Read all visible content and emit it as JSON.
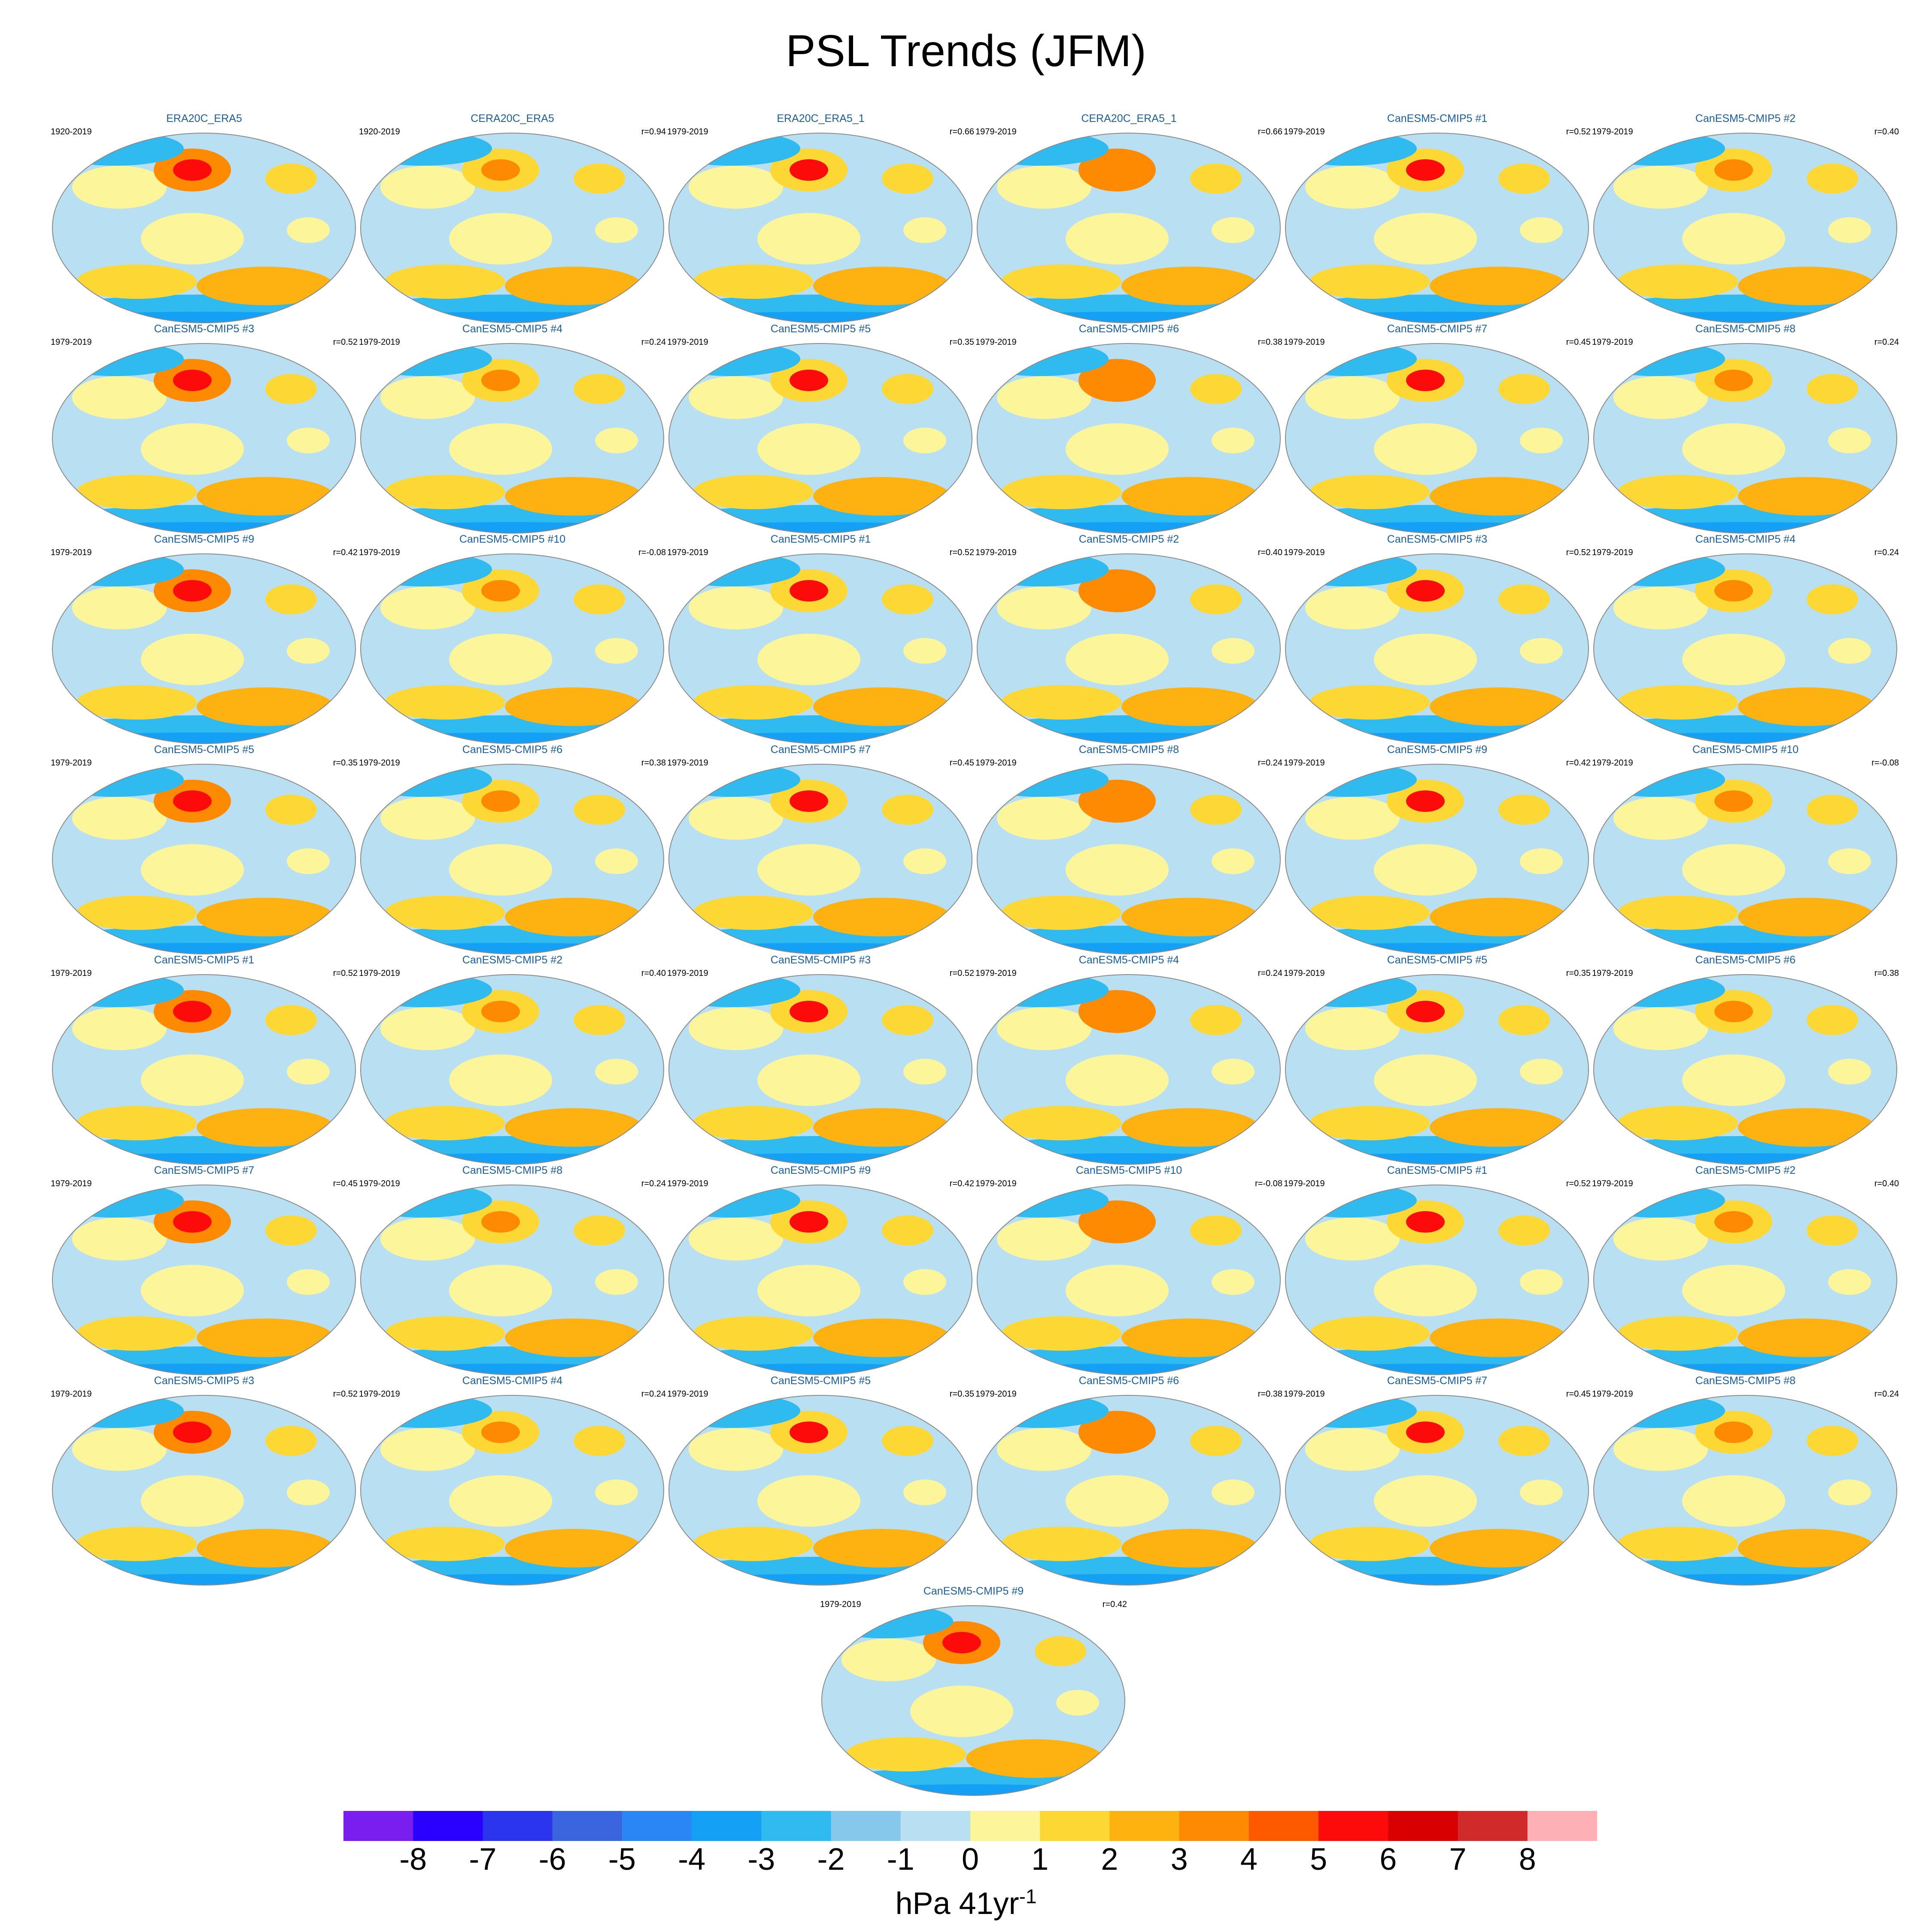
{
  "chart_data": {
    "type": "heatmap",
    "title": "PSL Trends (JFM)",
    "variable": "PSL",
    "season": "JFM",
    "colorbar": {
      "levels": [
        -8,
        -7,
        -6,
        -5,
        -4,
        -3,
        -2,
        -1,
        0,
        1,
        2,
        3,
        4,
        5,
        6,
        7,
        8
      ],
      "tick_labels": [
        "-8",
        "-7",
        "-6",
        "-5",
        "-4",
        "-3",
        "-2",
        "-1",
        "0",
        "1",
        "2",
        "3",
        "4",
        "5",
        "6",
        "7",
        "8"
      ],
      "colors": [
        "#7a1ef0",
        "#2a00ff",
        "#2b35ee",
        "#3a65df",
        "#2a86f5",
        "#14a0f5",
        "#2fbbf0",
        "#86c8ec",
        "#b8e0f2",
        "#fdf59a",
        "#fdd835",
        "#fdb212",
        "#fd8a00",
        "#fd5a00",
        "#fd0a0a",
        "#d80000",
        "#d02a2a",
        "#fdb0b6"
      ],
      "unit_base": "hPa 41yr",
      "unit_exponent": "-1"
    },
    "panels": [
      {
        "title": "ERA20C_ERA5",
        "period": "1920-2019",
        "r": ""
      },
      {
        "title": "CERA20C_ERA5",
        "period": "1920-2019",
        "r": "r=0.94"
      },
      {
        "title": "ERA20C_ERA5_1",
        "period": "1979-2019",
        "r": "r=0.66"
      },
      {
        "title": "CERA20C_ERA5_1",
        "period": "1979-2019",
        "r": "r=0.66"
      },
      {
        "title": "CanESM5-CMIP5 #1",
        "period": "1979-2019",
        "r": "r=0.52"
      },
      {
        "title": "CanESM5-CMIP5 #2",
        "period": "1979-2019",
        "r": "r=0.40"
      },
      {
        "title": "CanESM5-CMIP5 #3",
        "period": "1979-2019",
        "r": "r=0.52"
      },
      {
        "title": "CanESM5-CMIP5 #4",
        "period": "1979-2019",
        "r": "r=0.24"
      },
      {
        "title": "CanESM5-CMIP5 #5",
        "period": "1979-2019",
        "r": "r=0.35"
      },
      {
        "title": "CanESM5-CMIP5 #6",
        "period": "1979-2019",
        "r": "r=0.38"
      },
      {
        "title": "CanESM5-CMIP5 #7",
        "period": "1979-2019",
        "r": "r=0.45"
      },
      {
        "title": "CanESM5-CMIP5 #8",
        "period": "1979-2019",
        "r": "r=0.24"
      },
      {
        "title": "CanESM5-CMIP5 #9",
        "period": "1979-2019",
        "r": "r=0.42"
      },
      {
        "title": "CanESM5-CMIP5 #10",
        "period": "1979-2019",
        "r": "r=-0.08"
      },
      {
        "title": "CanESM5-CMIP5 #1",
        "period": "1979-2019",
        "r": "r=0.52"
      },
      {
        "title": "CanESM5-CMIP5 #2",
        "period": "1979-2019",
        "r": "r=0.40"
      },
      {
        "title": "CanESM5-CMIP5 #3",
        "period": "1979-2019",
        "r": "r=0.52"
      },
      {
        "title": "CanESM5-CMIP5 #4",
        "period": "1979-2019",
        "r": "r=0.24"
      },
      {
        "title": "CanESM5-CMIP5 #5",
        "period": "1979-2019",
        "r": "r=0.35"
      },
      {
        "title": "CanESM5-CMIP5 #6",
        "period": "1979-2019",
        "r": "r=0.38"
      },
      {
        "title": "CanESM5-CMIP5 #7",
        "period": "1979-2019",
        "r": "r=0.45"
      },
      {
        "title": "CanESM5-CMIP5 #8",
        "period": "1979-2019",
        "r": "r=0.24"
      },
      {
        "title": "CanESM5-CMIP5 #9",
        "period": "1979-2019",
        "r": "r=0.42"
      },
      {
        "title": "CanESM5-CMIP5 #10",
        "period": "1979-2019",
        "r": "r=-0.08"
      },
      {
        "title": "CanESM5-CMIP5 #1",
        "period": "1979-2019",
        "r": "r=0.52"
      },
      {
        "title": "CanESM5-CMIP5 #2",
        "period": "1979-2019",
        "r": "r=0.40"
      },
      {
        "title": "CanESM5-CMIP5 #3",
        "period": "1979-2019",
        "r": "r=0.52"
      },
      {
        "title": "CanESM5-CMIP5 #4",
        "period": "1979-2019",
        "r": "r=0.24"
      },
      {
        "title": "CanESM5-CMIP5 #5",
        "period": "1979-2019",
        "r": "r=0.35"
      },
      {
        "title": "CanESM5-CMIP5 #6",
        "period": "1979-2019",
        "r": "r=0.38"
      },
      {
        "title": "CanESM5-CMIP5 #7",
        "period": "1979-2019",
        "r": "r=0.45"
      },
      {
        "title": "CanESM5-CMIP5 #8",
        "period": "1979-2019",
        "r": "r=0.24"
      },
      {
        "title": "CanESM5-CMIP5 #9",
        "period": "1979-2019",
        "r": "r=0.42"
      },
      {
        "title": "CanESM5-CMIP5 #10",
        "period": "1979-2019",
        "r": "r=-0.08"
      },
      {
        "title": "CanESM5-CMIP5 #1",
        "period": "1979-2019",
        "r": "r=0.52"
      },
      {
        "title": "CanESM5-CMIP5 #2",
        "period": "1979-2019",
        "r": "r=0.40"
      },
      {
        "title": "CanESM5-CMIP5 #3",
        "period": "1979-2019",
        "r": "r=0.52"
      },
      {
        "title": "CanESM5-CMIP5 #4",
        "period": "1979-2019",
        "r": "r=0.24"
      },
      {
        "title": "CanESM5-CMIP5 #5",
        "period": "1979-2019",
        "r": "r=0.35"
      },
      {
        "title": "CanESM5-CMIP5 #6",
        "period": "1979-2019",
        "r": "r=0.38"
      },
      {
        "title": "CanESM5-CMIP5 #7",
        "period": "1979-2019",
        "r": "r=0.45"
      },
      {
        "title": "CanESM5-CMIP5 #8",
        "period": "1979-2019",
        "r": "r=0.24"
      },
      {
        "title": "CanESM5-CMIP5 #9",
        "period": "1979-2019",
        "r": "r=0.42"
      }
    ]
  }
}
